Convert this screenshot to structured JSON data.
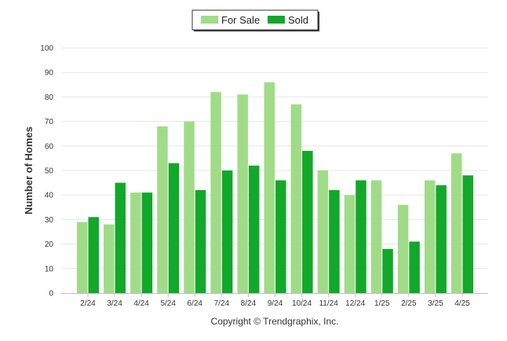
{
  "chart_data": {
    "type": "bar",
    "categories": [
      "2/24",
      "3/24",
      "4/24",
      "5/24",
      "6/24",
      "7/24",
      "8/24",
      "9/24",
      "10/24",
      "11/24",
      "12/24",
      "1/25",
      "2/25",
      "3/25",
      "4/25"
    ],
    "series": [
      {
        "name": "For Sale",
        "color": "#a0dc87",
        "values": [
          29,
          28,
          41,
          68,
          70,
          82,
          81,
          86,
          77,
          50,
          40,
          46,
          36,
          46,
          57
        ]
      },
      {
        "name": "Sold",
        "color": "#12a82a",
        "values": [
          31,
          45,
          41,
          53,
          42,
          50,
          52,
          46,
          58,
          42,
          46,
          18,
          21,
          44,
          48
        ]
      }
    ],
    "title": "",
    "xlabel": "",
    "ylabel": "Number of Homes",
    "ylim": [
      0,
      100
    ],
    "yticks": [
      0,
      10,
      20,
      30,
      40,
      50,
      60,
      70,
      80,
      90,
      100
    ],
    "grid": true,
    "legend_position": "top-center"
  },
  "footer": "Copyright © Trendgraphix, Inc."
}
